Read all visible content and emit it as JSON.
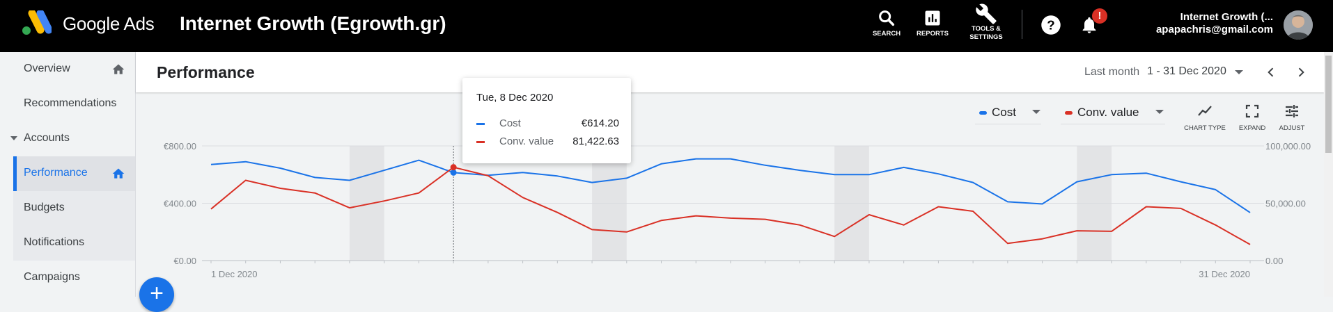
{
  "topbar": {
    "brand": "Google Ads",
    "account_title": "Internet Growth (Egrowth.gr)",
    "tools": [
      {
        "label": "SEARCH",
        "icon": "search-icon"
      },
      {
        "label": "REPORTS",
        "icon": "reports-icon"
      },
      {
        "label_line1": "TOOLS &",
        "label_line2": "SETTINGS",
        "icon": "wrench-icon"
      }
    ],
    "notification_badge": "!",
    "user_name": "Internet Growth (...",
    "user_email": "apapachris@gmail.com"
  },
  "sidebar": {
    "items": [
      {
        "label": "Overview",
        "icon": "home-icon"
      },
      {
        "label": "Recommendations"
      },
      {
        "label": "Accounts",
        "icon": "caret-down-icon"
      },
      {
        "label": "Performance",
        "icon": "home-icon",
        "active": true
      },
      {
        "label": "Budgets"
      },
      {
        "label": "Notifications"
      },
      {
        "label": "Campaigns"
      }
    ],
    "fab_label": "+"
  },
  "header": {
    "title": "Performance",
    "range_label": "Last month",
    "date_range": "1 - 31 Dec 2020"
  },
  "chart_controls": {
    "metric1": {
      "label": "Cost",
      "color": "#1a73e8"
    },
    "metric2": {
      "label": "Conv. value",
      "color": "#d93025"
    },
    "tools": [
      {
        "label": "CHART TYPE",
        "icon": "chart-type-icon"
      },
      {
        "label": "EXPAND",
        "icon": "expand-icon"
      },
      {
        "label": "ADJUST",
        "icon": "adjust-icon"
      }
    ]
  },
  "tooltip": {
    "date": "Tue, 8 Dec 2020",
    "rows": [
      {
        "name": "Cost",
        "value": "€614.20",
        "color": "#1a73e8"
      },
      {
        "name": "Conv. value",
        "value": "81,422.63",
        "color": "#d93025"
      }
    ]
  },
  "chart_data": {
    "type": "line",
    "x_start_label": "1 Dec 2020",
    "x_end_label": "31 Dec 2020",
    "x": [
      1,
      2,
      3,
      4,
      5,
      6,
      7,
      8,
      9,
      10,
      11,
      12,
      13,
      14,
      15,
      16,
      17,
      18,
      19,
      20,
      21,
      22,
      23,
      24,
      25,
      26,
      27,
      28,
      29,
      30,
      31
    ],
    "left_axis": {
      "ticks": [
        "€800.00",
        "€400.00",
        "€0.00"
      ],
      "ylim": [
        0,
        800
      ]
    },
    "right_axis": {
      "ticks": [
        "100,000.00",
        "50,000.00",
        "0.00"
      ],
      "ylim": [
        0,
        100000
      ]
    },
    "weekend_bands": [
      [
        5,
        6
      ],
      [
        12,
        13
      ],
      [
        19,
        20
      ],
      [
        26,
        27
      ]
    ],
    "highlight_day": 8,
    "series": [
      {
        "name": "Cost",
        "axis": "left",
        "color": "#1a73e8",
        "values": [
          670,
          690,
          645,
          580,
          560,
          630,
          700,
          614,
          595,
          615,
          590,
          545,
          575,
          675,
          710,
          710,
          665,
          630,
          600,
          600,
          650,
          605,
          545,
          410,
          395,
          550,
          600,
          610,
          550,
          495,
          335
        ]
      },
      {
        "name": "Conv. value",
        "axis": "right",
        "color": "#d93025",
        "values": [
          45000,
          70000,
          63000,
          59000,
          46000,
          52000,
          59000,
          81422,
          74000,
          55000,
          42000,
          27000,
          25000,
          35000,
          39000,
          37000,
          36000,
          31000,
          21000,
          40000,
          31000,
          47000,
          43000,
          15000,
          19000,
          26000,
          25500,
          47000,
          45500,
          31000,
          14000
        ]
      }
    ]
  }
}
